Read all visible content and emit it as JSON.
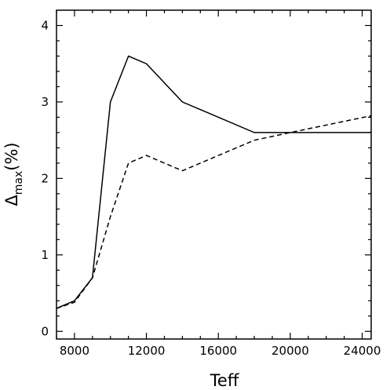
{
  "chart_data": {
    "type": "line",
    "xlabel": "Teff",
    "ylabel": {
      "symbol": "Δ",
      "subscript": "max",
      "suffix": "(%)"
    },
    "xlim": [
      7000,
      24500
    ],
    "ylim": [
      -0.1,
      4.2
    ],
    "xticks": [
      8000,
      12000,
      16000,
      20000,
      24000
    ],
    "xtick_labels": [
      "8000",
      "12000",
      "16000",
      "20000",
      "24000"
    ],
    "yticks": [
      0,
      1,
      2,
      3,
      4
    ],
    "ytick_labels": [
      "0",
      "1",
      "2",
      "3",
      "4"
    ],
    "grid": false,
    "series": [
      {
        "style": "solid",
        "color": "#000000",
        "points": [
          [
            7000,
            0.3
          ],
          [
            8000,
            0.4
          ],
          [
            9000,
            0.7
          ],
          [
            10000,
            3.0
          ],
          [
            11000,
            3.6
          ],
          [
            12000,
            3.5
          ],
          [
            14000,
            3.0
          ],
          [
            18000,
            2.6
          ],
          [
            20000,
            2.6
          ],
          [
            24500,
            2.6
          ]
        ]
      },
      {
        "style": "dashed",
        "color": "#000000",
        "points": [
          [
            7000,
            0.3
          ],
          [
            8000,
            0.38
          ],
          [
            9000,
            0.7
          ],
          [
            10000,
            1.5
          ],
          [
            11000,
            2.2
          ],
          [
            12000,
            2.3
          ],
          [
            14000,
            2.1
          ],
          [
            18000,
            2.5
          ],
          [
            20000,
            2.6
          ],
          [
            24500,
            2.82
          ]
        ]
      }
    ]
  }
}
